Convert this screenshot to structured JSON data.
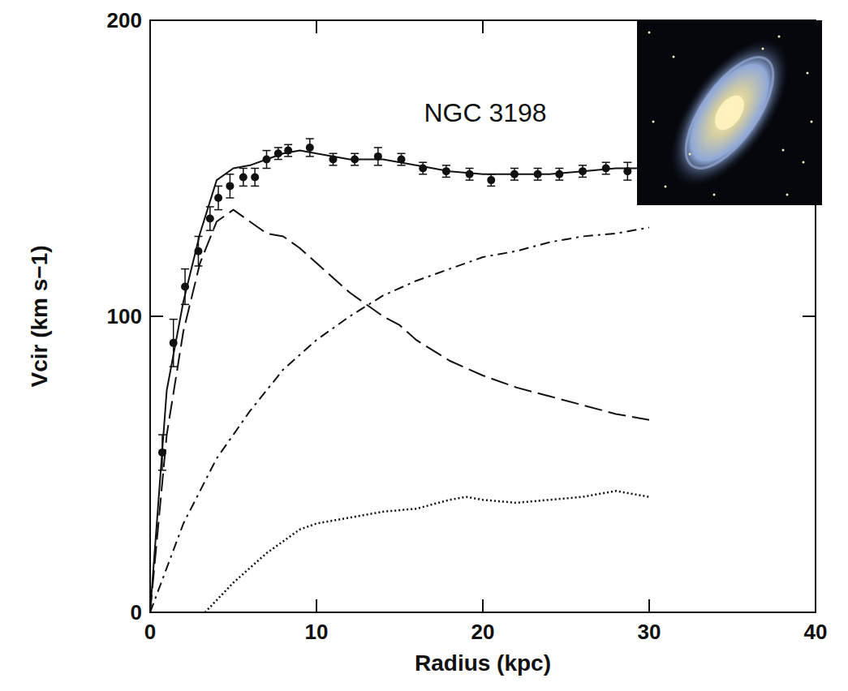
{
  "chart_data": {
    "type": "line",
    "title": "NGC 3198",
    "x_label": "Radius (kpc)",
    "y_label": "Vcir (km s−1)",
    "xlim": [
      0,
      40
    ],
    "ylim": [
      0,
      200
    ],
    "xticks": [
      0,
      10,
      20,
      30,
      40
    ],
    "yticks": [
      0,
      100,
      200
    ],
    "grid": false,
    "series": [
      {
        "type": "scatter",
        "marker": "circle",
        "color": "#111111",
        "x": [
          0.73,
          1.4,
          2.1,
          2.9,
          3.6,
          4.1,
          4.8,
          5.6,
          6.3,
          7.0,
          7.7,
          8.3,
          9.6,
          11.0,
          12.3,
          13.7,
          15.1,
          16.4,
          17.8,
          19.2,
          20.5,
          21.9,
          23.3,
          24.6,
          26.0,
          27.4,
          28.7
        ],
        "values": [
          54,
          91,
          110,
          122,
          133,
          140,
          144,
          147,
          147,
          153,
          155,
          156,
          157,
          153,
          153,
          154,
          153,
          150,
          149,
          148,
          146,
          148,
          148,
          148,
          149,
          150,
          149
        ],
        "errors": [
          6,
          8,
          6,
          5,
          4,
          4,
          4,
          3,
          3,
          3,
          2,
          2,
          3,
          2,
          2,
          3,
          2,
          2,
          2,
          2,
          2,
          2,
          2,
          2,
          2,
          2,
          3
        ]
      },
      {
        "type": "line",
        "line_style": "solid",
        "color": "#111111",
        "x": [
          0,
          1,
          2,
          3,
          4,
          5,
          6,
          7,
          8,
          9,
          10,
          12,
          14,
          16,
          18,
          20,
          22,
          24,
          26,
          28,
          30
        ],
        "values": [
          0,
          75,
          105,
          128,
          146,
          150,
          151,
          153,
          155,
          156,
          155,
          153,
          153,
          151,
          149,
          148,
          148,
          148,
          149,
          150,
          150
        ]
      },
      {
        "type": "line",
        "line_style": "dashed",
        "color": "#111111",
        "x": [
          0,
          1,
          2,
          3,
          4,
          5,
          6,
          7,
          8,
          9,
          10,
          12,
          14,
          15,
          16,
          18,
          20,
          22,
          24,
          26,
          28,
          30
        ],
        "values": [
          0,
          60,
          95,
          118,
          132,
          136,
          132,
          128,
          127,
          123,
          118,
          108,
          100,
          97,
          92,
          85,
          80,
          76,
          73,
          70,
          67,
          65
        ]
      },
      {
        "type": "line",
        "line_style": "dashdot",
        "color": "#111111",
        "x": [
          0,
          2,
          4,
          6,
          8,
          10,
          12,
          14,
          16,
          18,
          20,
          22,
          24,
          26,
          28,
          30
        ],
        "values": [
          0,
          30,
          52,
          68,
          82,
          92,
          100,
          107,
          112,
          116,
          120,
          122,
          125,
          127,
          128,
          130
        ]
      },
      {
        "type": "line",
        "line_style": "dotted",
        "color": "#111111",
        "x": [
          3.3,
          5,
          7,
          9,
          10,
          12,
          14,
          16,
          18,
          19,
          20,
          22,
          24,
          26,
          28,
          29,
          30
        ],
        "values": [
          0,
          10,
          20,
          28,
          30,
          32,
          34,
          35,
          38,
          39,
          38,
          37,
          38,
          39,
          41,
          40,
          39
        ]
      }
    ]
  }
}
